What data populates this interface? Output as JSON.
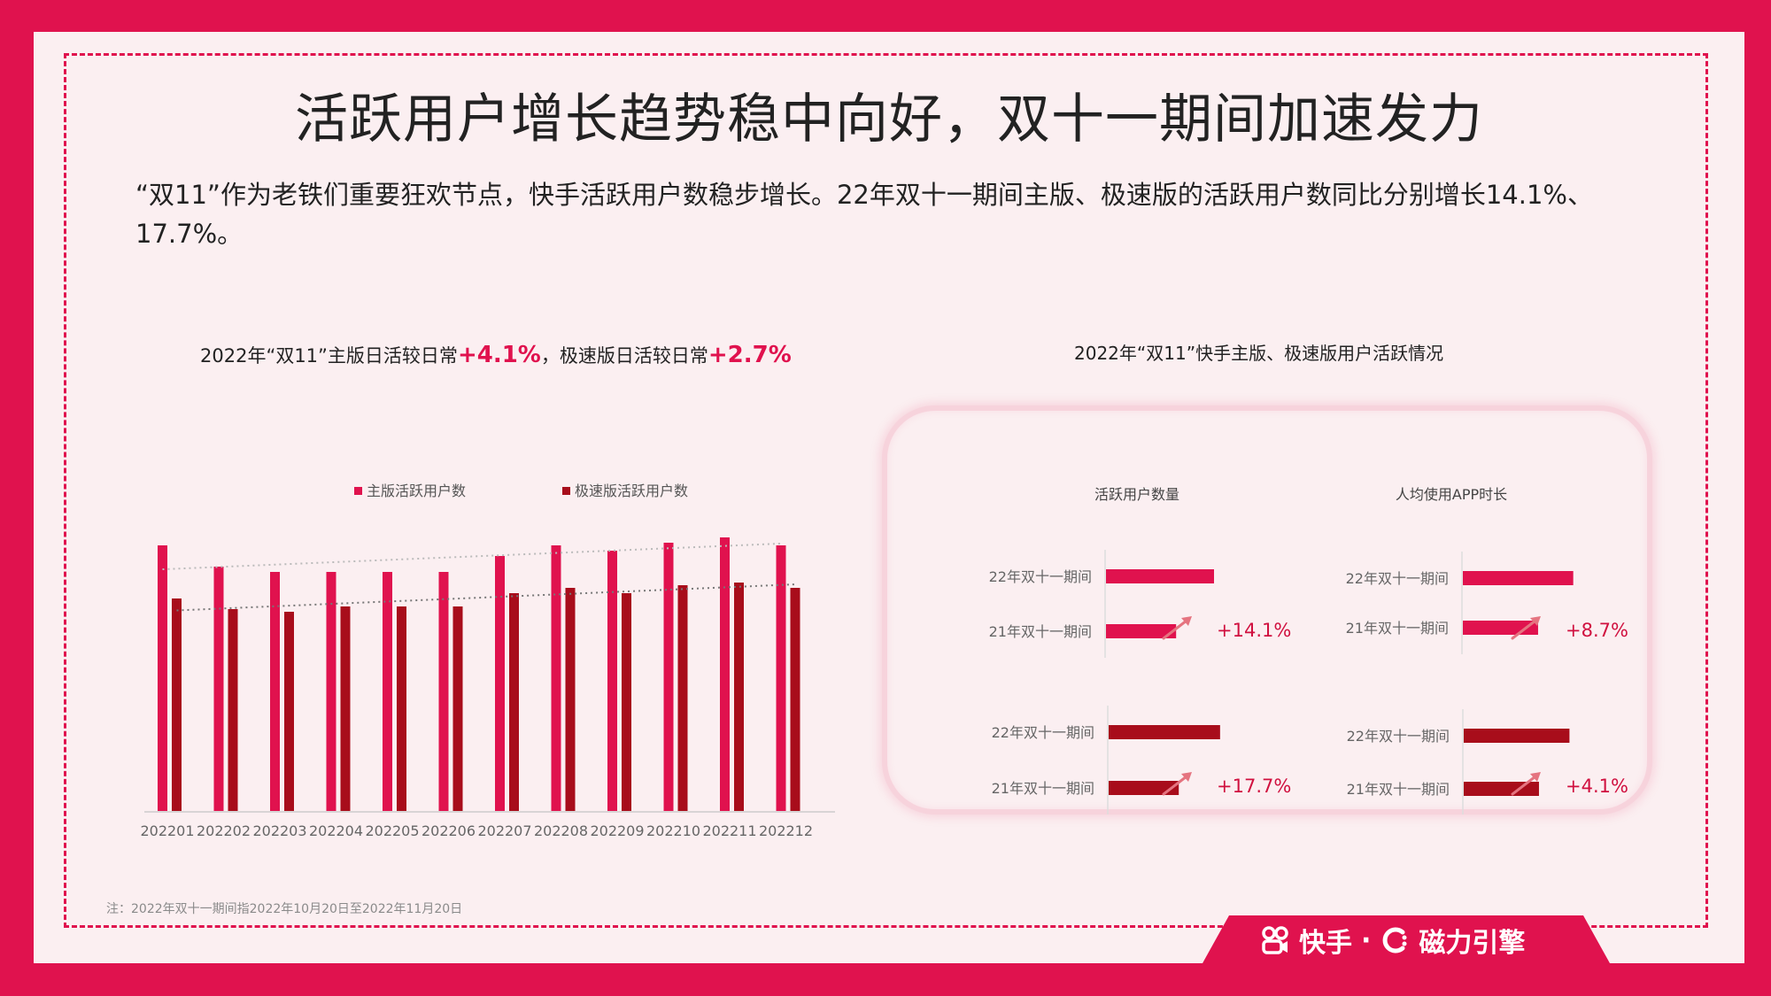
{
  "title": "活跃用户增长趋势稳中向好，双十一期间加速发力",
  "description": "“双11”作为老铁们重要狂欢节点，快手活跃用户数稳步增长。22年双十一期间主版、极速版的活跃用户数同比分别增长14.1%、17.7%。",
  "left_chart": {
    "title_part1": "2022年“双11”主版日活较日常",
    "title_value1": "+4.1%",
    "title_part2": "，极速版日活较日常",
    "title_value2": "+2.7%"
  },
  "right_chart": {
    "title": "2022年“双11”快手主版、极速版用户活跃情况"
  },
  "colors": {
    "main": "#E0124E",
    "lite": "#A80D1B",
    "frame": "#E0124E",
    "background": "#FBEFF1"
  },
  "chart_data": [
    {
      "type": "bar",
      "categories": [
        "202201",
        "202202",
        "202203",
        "202204",
        "202205",
        "202206",
        "202207",
        "202208",
        "202209",
        "202210",
        "202211",
        "202212"
      ],
      "series": [
        {
          "name": "主版活跃用户数",
          "color": "#E0124E",
          "values": [
            100,
            92,
            90,
            90,
            90,
            90,
            96,
            100,
            98,
            101,
            103,
            100
          ]
        },
        {
          "name": "极速版活跃用户数",
          "color": "#A80D1B",
          "values": [
            80,
            76,
            75,
            77,
            77,
            77,
            82,
            84,
            82,
            85,
            86,
            84
          ]
        }
      ],
      "trendlines": true,
      "legend": "top",
      "ylim": [
        0,
        120
      ],
      "grid": false
    },
    {
      "type": "bar",
      "orientation": "horizontal",
      "panels": [
        {
          "header": "活跃用户数量",
          "color": "#E0124E",
          "categories": [
            "22年双十一期间",
            "21年双十一期间"
          ],
          "values": [
            114.1,
            100
          ],
          "change": "+14.1%"
        },
        {
          "header": "人均使用APP时长",
          "color": "#E0124E",
          "categories": [
            "22年双十一期间",
            "21年双十一期间"
          ],
          "values": [
            108.7,
            100
          ],
          "change": "+8.7%"
        },
        {
          "header": "",
          "color": "#A80D1B",
          "categories": [
            "22年双十一期间",
            "21年双十一期间"
          ],
          "values": [
            117.7,
            100
          ],
          "change": "+17.7%"
        },
        {
          "header": "",
          "color": "#A80D1B",
          "categories": [
            "22年双十一期间",
            "21年双十一期间"
          ],
          "values": [
            104.1,
            100
          ],
          "change": "+4.1%"
        }
      ]
    }
  ],
  "footnote": "注：2022年双十一期间指2022年10月20日至2022年11月20日",
  "brand": {
    "name1": "快手",
    "separator": "·",
    "name2": "磁力引擎"
  }
}
